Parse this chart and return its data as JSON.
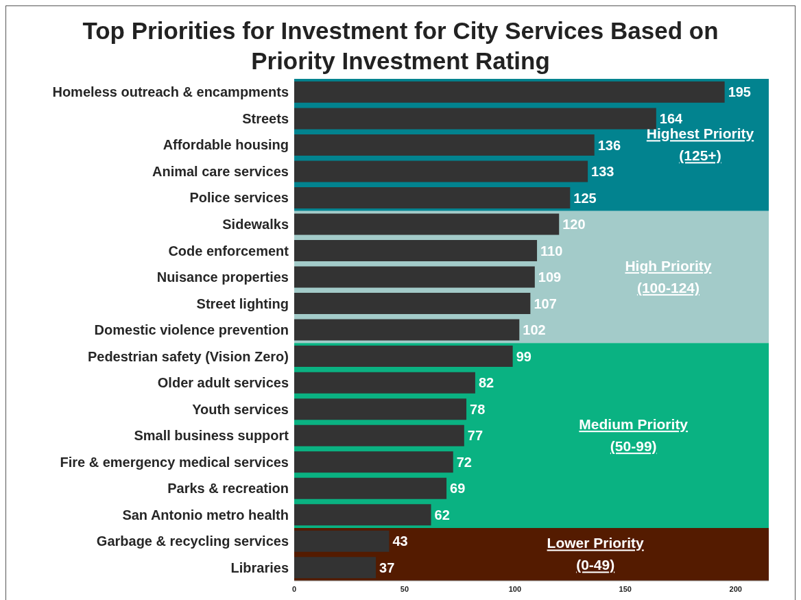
{
  "chart_data": {
    "type": "bar",
    "orientation": "horizontal",
    "title": "Top Priorities for Investment for City Services Based on Priority Investment Rating",
    "categories": [
      "Homeless outreach & encampments",
      "Streets",
      "Affordable housing",
      "Animal care services",
      "Police services",
      "Sidewalks",
      "Code enforcement",
      "Nuisance properties",
      "Street lighting",
      "Domestic violence prevention",
      "Pedestrian safety (Vision Zero)",
      "Older adult services",
      "Youth services",
      "Small business support",
      "Fire & emergency medical services",
      "Parks & recreation",
      "San Antonio metro health",
      "Garbage & recycling services",
      "Libraries"
    ],
    "values": [
      195,
      164,
      136,
      133,
      125,
      120,
      110,
      109,
      107,
      102,
      99,
      82,
      78,
      77,
      72,
      69,
      62,
      43,
      37
    ],
    "color": "#333333",
    "data_labels": true,
    "xlim": [
      0,
      215
    ],
    "xticks": [
      0,
      50,
      100,
      150,
      200
    ],
    "bands": [
      {
        "axis": "y",
        "from": "Homeless outreach & encampments",
        "to": "Police services",
        "label": "Highest Priority\n(125+)",
        "color": "#02838f"
      },
      {
        "axis": "y",
        "from": "Sidewalks",
        "to": "Domestic violence prevention",
        "label": "High Priority\n(100-124)",
        "color": "#a3cbc9"
      },
      {
        "axis": "y",
        "from": "Pedestrian safety (Vision Zero)",
        "to": "San Antonio metro health",
        "label": "Medium Priority\n(50-99)",
        "color": "#0ab282"
      },
      {
        "axis": "y",
        "from": "Garbage & recycling services",
        "to": "Libraries",
        "label": "Lower Priority\n(0-49)",
        "color": "#541b00"
      }
    ],
    "grid": false,
    "legend": false
  }
}
